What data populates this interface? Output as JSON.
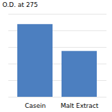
{
  "chart_data": {
    "type": "bar",
    "ylabel": "O.D. at 275",
    "categories": [
      "Casein",
      "Malt Extract"
    ],
    "values": [
      0.92,
      0.58
    ],
    "color": "#4C7FC0",
    "ylim": [
      0,
      1.05
    ],
    "yticks": [
      0,
      0.21,
      0.42,
      0.63,
      0.84,
      1.05
    ],
    "grid": true,
    "tick_labels": "x"
  }
}
